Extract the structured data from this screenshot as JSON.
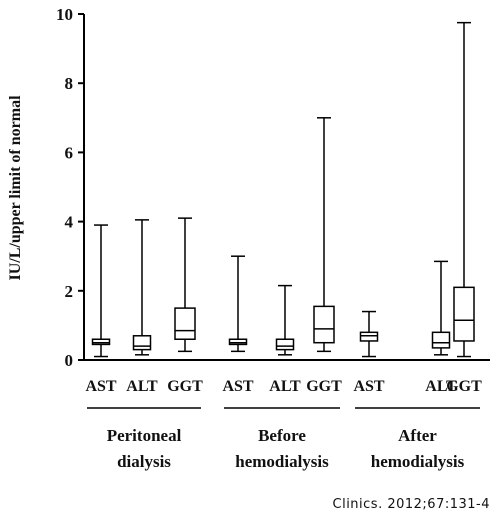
{
  "chart_data": {
    "type": "boxplot",
    "ylabel": "IU/L/upper limit of normal",
    "ylim": [
      0,
      10
    ],
    "yticks": [
      "0",
      "2",
      "4",
      "6",
      "8",
      "10"
    ],
    "categories": [
      "AST",
      "ALT",
      "GGT"
    ],
    "groups": [
      {
        "name_lines": [
          "Peritoneal",
          "dialysis"
        ],
        "boxes": [
          {
            "category": "AST",
            "min": 0.1,
            "q1": 0.45,
            "median": 0.5,
            "q3": 0.6,
            "max": 3.9
          },
          {
            "category": "ALT",
            "min": 0.15,
            "q1": 0.3,
            "median": 0.4,
            "q3": 0.7,
            "max": 4.05
          },
          {
            "category": "GGT",
            "min": 0.25,
            "q1": 0.6,
            "median": 0.85,
            "q3": 1.5,
            "max": 4.1
          }
        ]
      },
      {
        "name_lines": [
          "Before",
          "hemodialysis"
        ],
        "boxes": [
          {
            "category": "AST",
            "min": 0.25,
            "q1": 0.45,
            "median": 0.5,
            "q3": 0.6,
            "max": 3.0
          },
          {
            "category": "ALT",
            "min": 0.15,
            "q1": 0.3,
            "median": 0.4,
            "q3": 0.6,
            "max": 2.15
          },
          {
            "category": "GGT",
            "min": 0.25,
            "q1": 0.5,
            "median": 0.9,
            "q3": 1.55,
            "max": 7.0
          }
        ]
      },
      {
        "name_lines": [
          "After",
          "hemodialysis"
        ],
        "boxes": [
          {
            "category": "AST",
            "min": 0.1,
            "q1": 0.55,
            "median": 0.7,
            "q3": 0.8,
            "max": 1.4
          },
          {
            "category": "ALT",
            "min": 0.15,
            "q1": 0.35,
            "median": 0.5,
            "q3": 0.8,
            "max": 2.85
          },
          {
            "category": "GGT",
            "min": 0.1,
            "q1": 0.55,
            "median": 1.15,
            "q3": 2.1,
            "max": 9.75
          }
        ]
      }
    ]
  },
  "citation": "Clinics. 2012;67:131-4"
}
